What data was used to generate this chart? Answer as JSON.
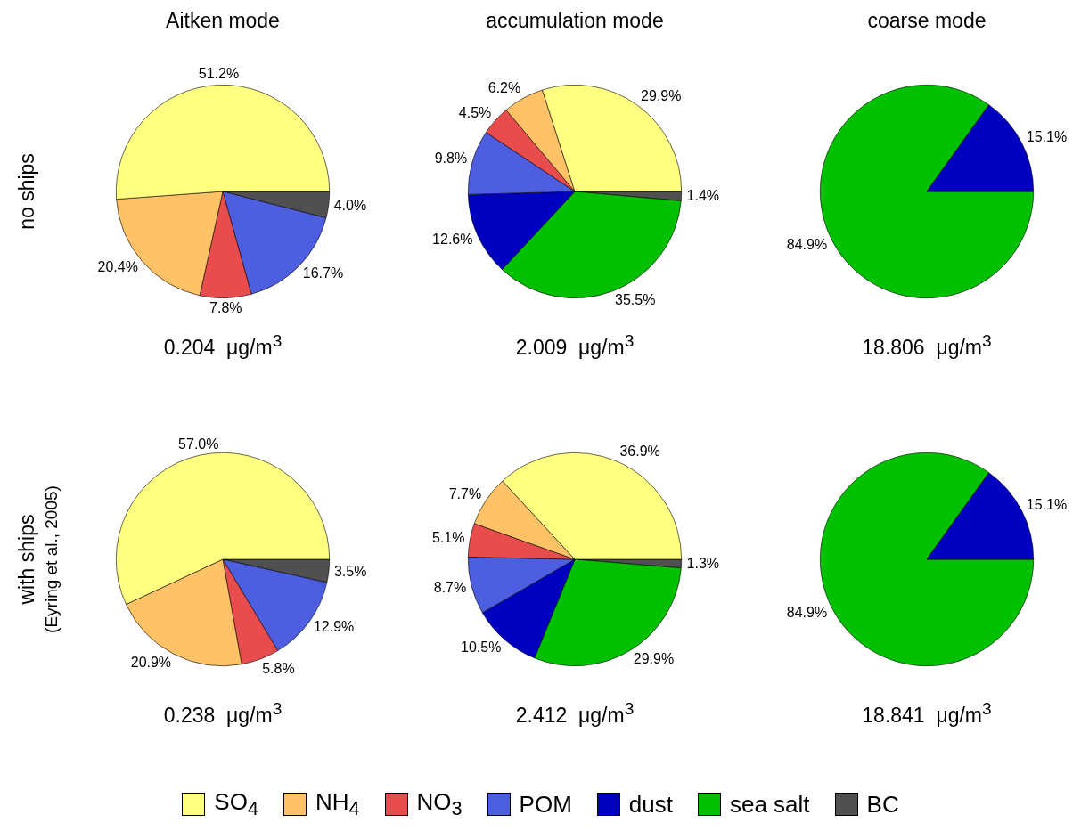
{
  "chart_data": [
    {
      "type": "pie",
      "title": "Aitken mode",
      "ylabel": "no ships",
      "xlabel": "0.204  μg/m$^{3}$",
      "categories": [
        null,
        null,
        null,
        null,
        null
      ],
      "values": [
        51.2,
        20.4,
        7.8,
        16.7,
        4.0
      ],
      "value_labels": [
        "51.2%",
        "20.4%",
        "7.8%",
        "16.7%",
        "4.0%"
      ],
      "colors": [
        "#ffff80",
        "#ffc266",
        "#e84c4c",
        "#4d5fe0",
        "#505050"
      ]
    },
    {
      "type": "pie",
      "legend": "bottom",
      "title": "accumulation mode",
      "xlabel": "2.009  μg/m$^{3}$",
      "categories": [
        "SO$_{4}$",
        "NH$_{4}$",
        "NO$_{3}$",
        "POM",
        "dust",
        "sea salt",
        "BC"
      ],
      "values": [
        29.9,
        6.2,
        4.5,
        9.8,
        12.6,
        35.5,
        1.4
      ],
      "value_labels": [
        "29.9%",
        "6.2%",
        "4.5%",
        "9.8%",
        "12.6%",
        "35.5%",
        "1.4%"
      ],
      "colors": [
        "#ffff80",
        "#ffc266",
        "#e84c4c",
        "#4d5fe0",
        "#0000c0",
        "#00c000",
        "#505050"
      ]
    },
    {
      "type": "pie",
      "title": "coarse mode",
      "xlabel": "18.806  μg/m$^{3}$",
      "categories": [
        null,
        null
      ],
      "values": [
        15.1,
        84.9
      ],
      "value_labels": [
        "15.1%",
        "84.9%"
      ],
      "colors": [
        "#0000c0",
        "#00c000"
      ]
    },
    {
      "type": "pie",
      "ylabel": "with ships",
      "annotations": [
        "(Eyring et al., 2005)"
      ],
      "xlabel": "0.238  μg/m$^{3}$",
      "categories": [
        null,
        null,
        null,
        null,
        null
      ],
      "values": [
        57.0,
        20.9,
        5.8,
        12.9,
        3.5
      ],
      "value_labels": [
        "57.0%",
        "20.9%",
        "5.8%",
        "12.9%",
        "3.5%"
      ],
      "colors": [
        "#ffff80",
        "#ffc266",
        "#e84c4c",
        "#4d5fe0",
        "#505050"
      ]
    },
    {
      "type": "pie",
      "xlabel": "2.412  μg/m$^{3}$",
      "categories": [
        null,
        null,
        null,
        null,
        null,
        null,
        null
      ],
      "values": [
        36.9,
        7.7,
        5.1,
        8.7,
        10.5,
        29.9,
        1.3
      ],
      "value_labels": [
        "36.9%",
        "7.7%",
        "5.1%",
        "8.7%",
        "10.5%",
        "29.9%",
        "1.3%"
      ],
      "colors": [
        "#ffff80",
        "#ffc266",
        "#e84c4c",
        "#4d5fe0",
        "#0000c0",
        "#00c000",
        "#505050"
      ]
    },
    {
      "type": "pie",
      "xlabel": "18.841  μg/m$^{3}$",
      "categories": [
        null,
        null
      ],
      "values": [
        15.1,
        84.9
      ],
      "value_labels": [
        "15.1%",
        "84.9%"
      ],
      "colors": [
        "#0000c0",
        "#00c000"
      ]
    }
  ]
}
